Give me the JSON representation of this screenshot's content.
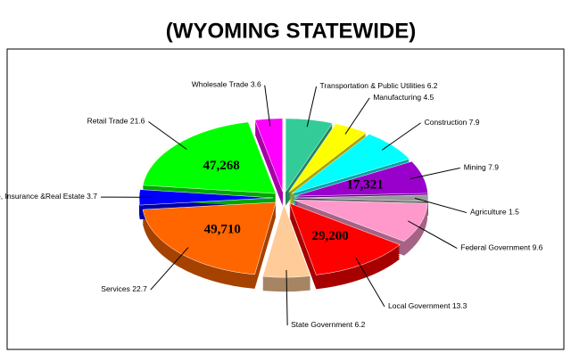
{
  "chart_data": {
    "type": "pie",
    "title": "(WYOMING STATEWIDE)",
    "categories": [
      "Transportation & Public Utilities",
      "Manufacturing",
      "Construction",
      "Mining",
      "Agriculture",
      "Federal Government",
      "Local Government",
      "State Government",
      "Services",
      "Finance, Insurance &Real Estate",
      "Retail Trade",
      "Wholesale Trade"
    ],
    "values": [
      6.2,
      4.5,
      7.9,
      7.9,
      1.5,
      9.6,
      13.3,
      6.2,
      22.7,
      3.7,
      21.6,
      3.6
    ],
    "colors": [
      "#33cc99",
      "#ffff00",
      "#00ffff",
      "#9900cc",
      "#999999",
      "#ff99cc",
      "#ff0000",
      "#ffcc99",
      "#ff6600",
      "#0000ff",
      "#00ff00",
      "#ff00ff"
    ],
    "slice_labels": [
      null,
      null,
      null,
      "17,321",
      null,
      null,
      "29,200",
      null,
      "49,710",
      null,
      "47,268",
      null
    ]
  }
}
